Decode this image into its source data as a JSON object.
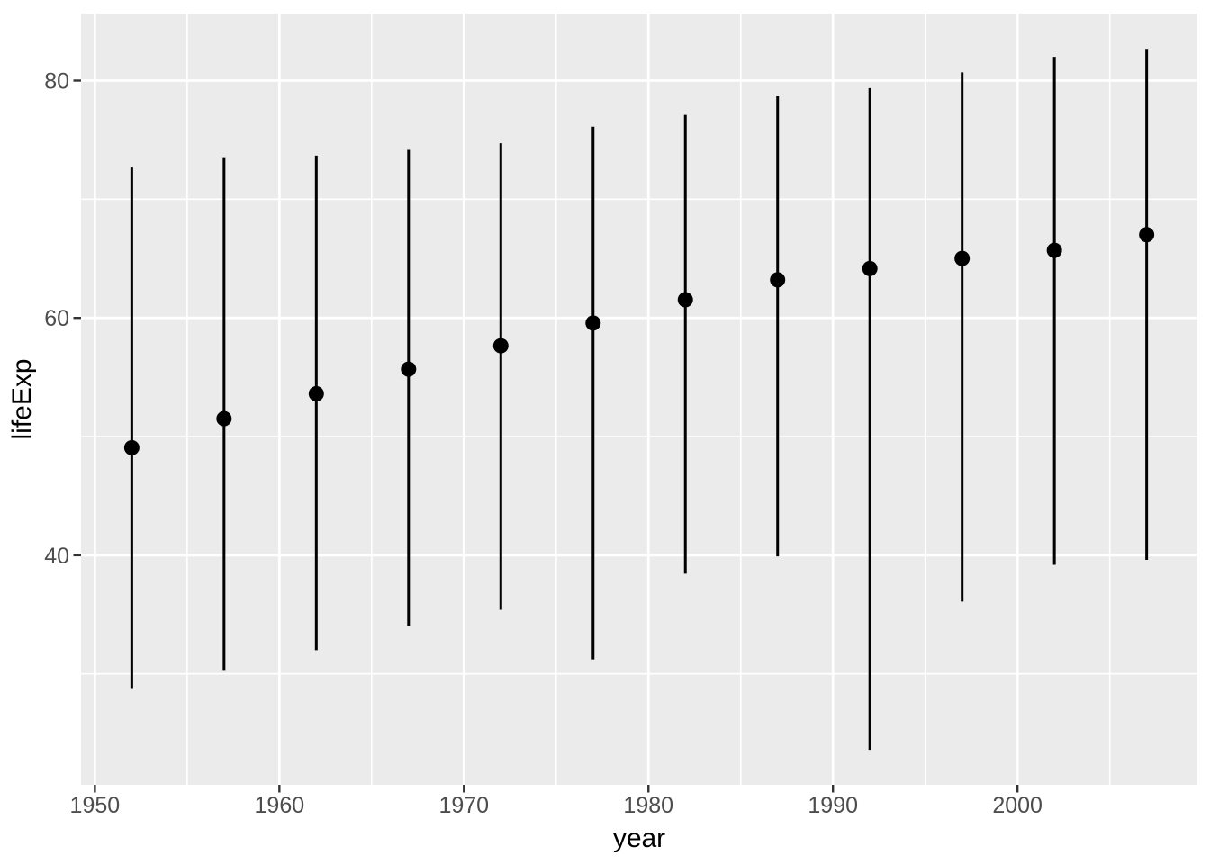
{
  "chart_data": {
    "type": "pointrange",
    "title": "",
    "xlabel": "year",
    "ylabel": "lifeExp",
    "x_tick_labels": [
      "1950",
      "1960",
      "1970",
      "1980",
      "1990",
      "2000"
    ],
    "x_major_ticks": [
      1950,
      1960,
      1970,
      1980,
      1990,
      2000
    ],
    "x_minor_gridlines": [
      1955,
      1965,
      1975,
      1985,
      1995,
      2005
    ],
    "y_tick_labels": [
      "40",
      "60",
      "80"
    ],
    "y_major_ticks": [
      40,
      60,
      80
    ],
    "y_minor_gridlines": [
      30,
      50,
      70
    ],
    "xlim": [
      1949.25,
      2009.75
    ],
    "ylim": [
      20.65,
      85.65
    ],
    "grid": true,
    "legend": "none",
    "series_description": "lifeExp summarised by year: point = mean, vertical line = min to max",
    "points": [
      {
        "year": 1952,
        "mean": 49.06,
        "min": 28.8,
        "max": 72.67
      },
      {
        "year": 1957,
        "mean": 51.51,
        "min": 30.33,
        "max": 73.47
      },
      {
        "year": 1962,
        "mean": 53.61,
        "min": 32.0,
        "max": 73.68
      },
      {
        "year": 1967,
        "mean": 55.68,
        "min": 34.02,
        "max": 74.16
      },
      {
        "year": 1972,
        "mean": 57.65,
        "min": 35.4,
        "max": 74.72
      },
      {
        "year": 1977,
        "mean": 59.57,
        "min": 31.22,
        "max": 76.11
      },
      {
        "year": 1982,
        "mean": 61.53,
        "min": 38.45,
        "max": 77.11
      },
      {
        "year": 1987,
        "mean": 63.21,
        "min": 39.91,
        "max": 78.67
      },
      {
        "year": 1992,
        "mean": 64.16,
        "min": 23.6,
        "max": 79.36
      },
      {
        "year": 1997,
        "mean": 65.01,
        "min": 36.09,
        "max": 80.69
      },
      {
        "year": 2002,
        "mean": 65.69,
        "min": 39.19,
        "max": 82.0
      },
      {
        "year": 2007,
        "mean": 67.01,
        "min": 39.61,
        "max": 82.6
      }
    ],
    "colors": {
      "figure_background": "#FFFFFF",
      "panel_background": "#EBEBEB",
      "gridline": "#FFFFFF",
      "point_and_range": "#000000",
      "tick_mark": "#333333",
      "tick_label": "#4D4D4D",
      "axis_title": "#000000"
    }
  }
}
